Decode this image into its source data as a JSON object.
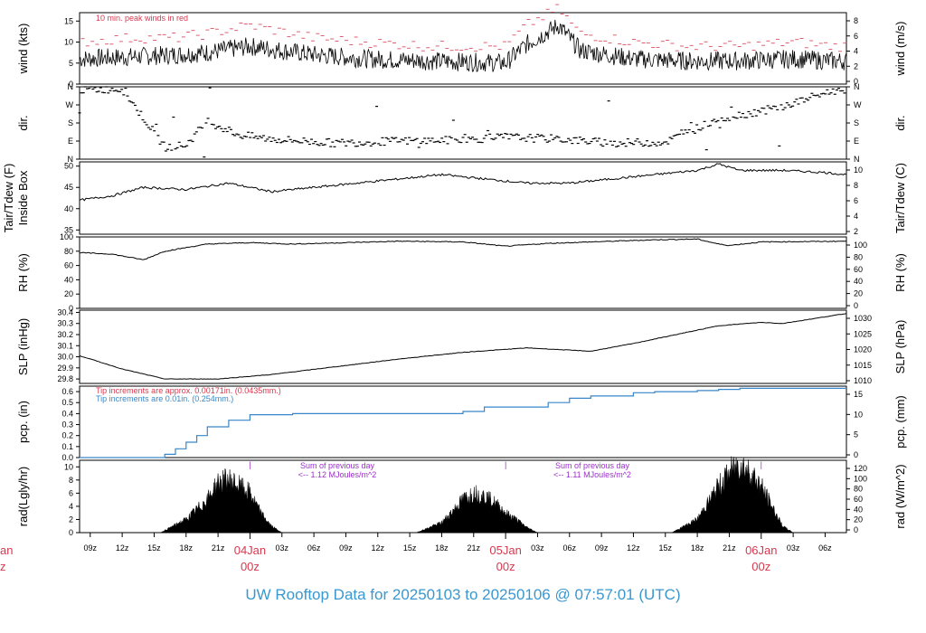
{
  "title": "UW Rooftop Data for 20250103  to  20250106 @ 07:57:01  (UTC)",
  "colors": {
    "frame": "#000000",
    "red_note": "#d6394f",
    "blue": "#3a86c8",
    "purple": "#9b2fc9",
    "title": "#3a97cf"
  },
  "x_axis": {
    "ticks": [
      "09z",
      "12z",
      "15z",
      "18z",
      "21z",
      "03z",
      "06z",
      "09z",
      "12z",
      "15z",
      "18z",
      "21z",
      "03z",
      "06z",
      "09z",
      "12z",
      "15z",
      "18z",
      "21z",
      "03z",
      "06z"
    ],
    "day_labels": [
      {
        "date": "04Jan",
        "time": "00z"
      },
      {
        "date": "05Jan",
        "time": "00z"
      },
      {
        "date": "06Jan",
        "time": "00z"
      }
    ],
    "clipped_day_label": {
      "date": "an",
      "time": "z"
    }
  },
  "panels": [
    {
      "id": "wind",
      "left_label": "wind (kts)",
      "right_label": "wind (m/s)",
      "left_ticks": [
        "0",
        "5",
        "10",
        "15"
      ],
      "right_ticks": [
        "0",
        "2",
        "4",
        "6",
        "8"
      ],
      "note": "10 min. peak winds in red"
    },
    {
      "id": "dir",
      "left_label": "dir.",
      "right_label": "dir.",
      "left_ticks": [
        "N",
        "E",
        "S",
        "W",
        "N"
      ],
      "right_ticks": [
        "N",
        "E",
        "S",
        "W",
        "N"
      ]
    },
    {
      "id": "temp",
      "left_label": "Tair/Tdew (F)",
      "left_label2": "Inside Box",
      "right_label": "Tair/Tdew (C)",
      "left_ticks": [
        "35",
        "40",
        "45",
        "50"
      ],
      "right_ticks": [
        "2",
        "4",
        "6",
        "8",
        "10"
      ]
    },
    {
      "id": "rh",
      "left_label": "RH (%)",
      "right_label": "RH (%)",
      "left_ticks": [
        "0",
        "20",
        "40",
        "60",
        "80",
        "100"
      ],
      "right_ticks": [
        "0",
        "20",
        "40",
        "60",
        "80",
        "100"
      ]
    },
    {
      "id": "slp",
      "left_label": "SLP (inHg)",
      "right_label": "SLP (hPa)",
      "left_ticks": [
        "29.8",
        "29.9",
        "30.0",
        "30.1",
        "30.2",
        "30.3",
        "30.4"
      ],
      "right_ticks": [
        "1010",
        "1015",
        "1020",
        "1025",
        "1030"
      ]
    },
    {
      "id": "pcp",
      "left_label": "pcp. (in)",
      "right_label": "pcp. (mm)",
      "left_ticks": [
        "0.0",
        "0.1",
        "0.2",
        "0.3",
        "0.4",
        "0.5",
        "0.6"
      ],
      "right_ticks": [
        "0",
        "5",
        "10",
        "15"
      ],
      "note1": "Tip increments are approx. 0.00171in. (0.0435mm.)",
      "note2": "Tip increments are 0.01in. (0.254mm.)"
    },
    {
      "id": "rad",
      "left_label": "rad(Lgly/hr)",
      "right_label": "rad (W/m^2)",
      "left_ticks": [
        "0",
        "2",
        "4",
        "6",
        "8",
        "10"
      ],
      "right_ticks": [
        "0",
        "20",
        "40",
        "60",
        "80",
        "100",
        "120"
      ],
      "sum_notes": [
        {
          "line1": "Sum of previous day",
          "line2": "<-- 1.12 MJoules/m^2"
        },
        {
          "line1": "Sum of previous day",
          "line2": "<-- 1.11 MJoules/m^2"
        }
      ]
    }
  ],
  "chart_data": [
    {
      "type": "line",
      "title": "",
      "ylabel": "wind (kts)",
      "x_unit": "hours since 03Jan 08z",
      "ylim": [
        0,
        17
      ],
      "series": [
        {
          "name": "wind",
          "x": [
            0,
            5,
            9,
            12,
            16,
            22,
            27,
            33,
            40,
            42,
            45,
            47,
            52,
            57,
            62,
            67,
            71
          ],
          "y": [
            6,
            6.5,
            7,
            7.5,
            9,
            7,
            6,
            5.5,
            5,
            9.5,
            14,
            8,
            6,
            5.5,
            5.5,
            6,
            5.5
          ]
        },
        {
          "name": "10 min. peak winds",
          "x": [
            0,
            5,
            9,
            12,
            16,
            22,
            27,
            33,
            40,
            42,
            45,
            47,
            52,
            57,
            62,
            67,
            71
          ],
          "y": [
            10,
            11,
            11,
            12,
            14,
            11,
            10,
            9,
            9,
            14,
            18,
            12,
            10,
            9,
            9,
            10,
            9
          ]
        }
      ]
    },
    {
      "type": "scatter",
      "ylabel": "dir.",
      "ylim": [
        0,
        360
      ],
      "series": [
        {
          "name": "dir",
          "x": [
            0,
            4,
            8,
            10,
            12,
            15,
            18,
            24,
            30,
            36,
            40,
            45,
            50,
            55,
            60,
            63,
            66,
            70,
            72
          ],
          "y": [
            345,
            350,
            60,
            70,
            190,
            120,
            100,
            80,
            90,
            95,
            110,
            100,
            80,
            85,
            200,
            230,
            260,
            330,
            350
          ]
        }
      ]
    },
    {
      "type": "line",
      "ylabel": "Tair/Tdew (F)",
      "ylim": [
        34,
        51
      ],
      "series": [
        {
          "name": "Tair",
          "x": [
            0,
            3,
            6,
            10,
            14,
            18,
            22,
            26,
            30,
            34,
            38,
            42,
            46,
            50,
            54,
            58,
            60,
            62,
            66,
            70,
            72
          ],
          "y": [
            42,
            43,
            45,
            44.5,
            46,
            44,
            45,
            46,
            47,
            48,
            47,
            46,
            46,
            47,
            48,
            49,
            50.5,
            49,
            49,
            48.5,
            48
          ]
        }
      ]
    },
    {
      "type": "line",
      "ylabel": "RH (%)",
      "ylim": [
        0,
        100
      ],
      "series": [
        {
          "name": "RH",
          "x": [
            0,
            3,
            6,
            8,
            12,
            16,
            20,
            30,
            36,
            40,
            44,
            48,
            54,
            58,
            60,
            61,
            64,
            72
          ],
          "y": [
            78,
            76,
            68,
            80,
            90,
            92,
            90,
            94,
            93,
            87,
            91,
            93,
            96,
            97,
            90,
            88,
            93,
            94
          ]
        }
      ]
    },
    {
      "type": "line",
      "ylabel": "SLP (inHg)",
      "ylim": [
        29.76,
        30.42
      ],
      "series": [
        {
          "name": "SLP",
          "x": [
            0,
            4,
            8,
            13,
            18,
            24,
            30,
            36,
            42,
            48,
            52,
            56,
            60,
            64,
            66,
            68,
            72
          ],
          "y": [
            30.01,
            29.89,
            29.8,
            29.8,
            29.84,
            29.91,
            29.98,
            30.04,
            30.08,
            30.05,
            30.12,
            30.2,
            30.28,
            30.31,
            30.3,
            30.33,
            30.39
          ]
        }
      ]
    },
    {
      "type": "line",
      "ylabel": "pcp. (in)",
      "ylim": [
        0,
        0.65
      ],
      "series": [
        {
          "name": "pcp",
          "x": [
            0,
            7,
            8,
            9,
            10,
            11,
            12,
            14,
            16,
            20,
            24,
            30,
            36,
            38,
            40,
            42,
            44,
            46,
            48,
            52,
            54,
            58,
            60,
            62,
            64,
            66,
            68,
            72
          ],
          "y": [
            0,
            0,
            0.03,
            0.08,
            0.14,
            0.2,
            0.28,
            0.34,
            0.39,
            0.4,
            0.4,
            0.4,
            0.42,
            0.46,
            0.46,
            0.46,
            0.5,
            0.54,
            0.56,
            0.59,
            0.6,
            0.61,
            0.62,
            0.63,
            0.63,
            0.63,
            0.63,
            0.63
          ]
        }
      ]
    },
    {
      "type": "area",
      "ylabel": "rad(Lgly/hr)",
      "ylim": [
        0,
        11
      ],
      "series": [
        {
          "name": "rad",
          "x": [
            7.6,
            10,
            12,
            13,
            14,
            15,
            16,
            17,
            18,
            19,
            31.6,
            34,
            36,
            37,
            38,
            39,
            40,
            41,
            42,
            43,
            55.6,
            58,
            60,
            61,
            62,
            63,
            64,
            65,
            66,
            67
          ],
          "y": [
            0,
            2,
            5,
            7.5,
            8,
            7,
            6,
            3,
            1,
            0,
            0,
            1.5,
            5,
            6,
            5.5,
            4.5,
            3,
            2,
            0.8,
            0,
            0,
            2,
            7,
            9,
            10.5,
            9,
            7,
            4,
            1,
            0
          ]
        }
      ]
    }
  ]
}
